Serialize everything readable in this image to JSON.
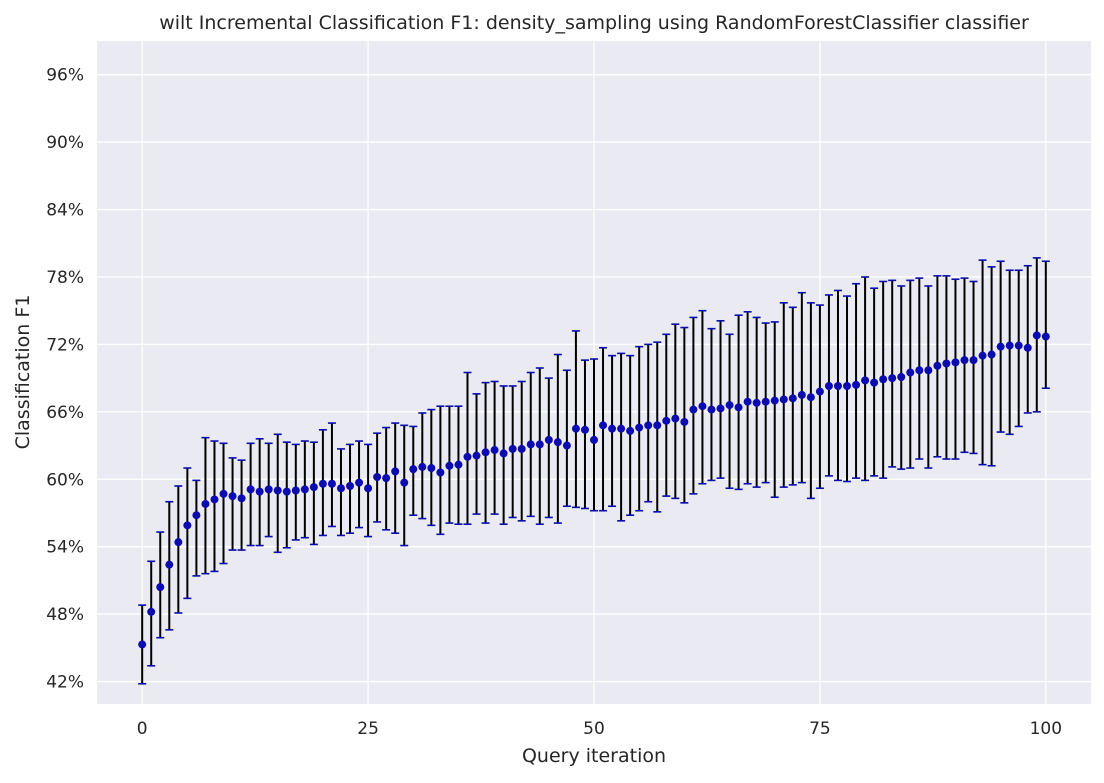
{
  "chart_data": {
    "type": "scatter",
    "title": "wilt Incremental Classification F1: density_sampling using RandomForestClassifier classifier",
    "xlabel": "Query iteration",
    "ylabel": "Classification F1",
    "xlim": [
      -5,
      105
    ],
    "ylim": [
      0.4,
      0.99
    ],
    "xticks": [
      0,
      25,
      50,
      75,
      100
    ],
    "xtick_labels": [
      "0",
      "25",
      "50",
      "75",
      "100"
    ],
    "yticks": [
      0.42,
      0.48,
      0.54,
      0.6,
      0.66,
      0.72,
      0.78,
      0.84,
      0.9,
      0.96
    ],
    "ytick_labels": [
      "42%",
      "48%",
      "54%",
      "60%",
      "66%",
      "72%",
      "78%",
      "84%",
      "90%",
      "96%"
    ],
    "grid": true,
    "colors": {
      "background": "#eaeaf2",
      "grid": "#ffffff",
      "marker": "#0b0bb0",
      "errorbar": "#000000",
      "cap": "#0b0bb0"
    },
    "x": [
      0,
      1,
      2,
      3,
      4,
      5,
      6,
      7,
      8,
      9,
      10,
      11,
      12,
      13,
      14,
      15,
      16,
      17,
      18,
      19,
      20,
      21,
      22,
      23,
      24,
      25,
      26,
      27,
      28,
      29,
      30,
      31,
      32,
      33,
      34,
      35,
      36,
      37,
      38,
      39,
      40,
      41,
      42,
      43,
      44,
      45,
      46,
      47,
      48,
      49,
      50,
      51,
      52,
      53,
      54,
      55,
      56,
      57,
      58,
      59,
      60,
      61,
      62,
      63,
      64,
      65,
      66,
      67,
      68,
      69,
      70,
      71,
      72,
      73,
      74,
      75,
      76,
      77,
      78,
      79,
      80,
      81,
      82,
      83,
      84,
      85,
      86,
      87,
      88,
      89,
      90,
      91,
      92,
      93,
      94,
      95,
      96,
      97,
      98,
      99,
      100
    ],
    "mean": [
      0.453,
      0.482,
      0.504,
      0.524,
      0.544,
      0.559,
      0.568,
      0.578,
      0.582,
      0.587,
      0.585,
      0.583,
      0.591,
      0.589,
      0.591,
      0.59,
      0.589,
      0.59,
      0.591,
      0.593,
      0.596,
      0.596,
      0.592,
      0.594,
      0.597,
      0.592,
      0.602,
      0.601,
      0.607,
      0.597,
      0.609,
      0.611,
      0.61,
      0.606,
      0.612,
      0.613,
      0.62,
      0.621,
      0.624,
      0.626,
      0.623,
      0.627,
      0.627,
      0.631,
      0.631,
      0.635,
      0.633,
      0.63,
      0.645,
      0.644,
      0.635,
      0.648,
      0.645,
      0.645,
      0.643,
      0.646,
      0.648,
      0.648,
      0.652,
      0.654,
      0.651,
      0.662,
      0.665,
      0.662,
      0.663,
      0.666,
      0.664,
      0.669,
      0.668,
      0.669,
      0.67,
      0.671,
      0.672,
      0.675,
      0.673,
      0.678,
      0.683,
      0.683,
      0.683,
      0.684,
      0.688,
      0.686,
      0.689,
      0.69,
      0.691,
      0.695,
      0.697,
      0.697,
      0.701,
      0.703,
      0.704,
      0.706,
      0.706,
      0.71,
      0.711,
      0.718,
      0.719,
      0.719,
      0.717,
      0.728,
      0.727
    ],
    "lower": [
      0.418,
      0.434,
      0.459,
      0.466,
      0.481,
      0.494,
      0.514,
      0.516,
      0.518,
      0.525,
      0.537,
      0.537,
      0.541,
      0.541,
      0.549,
      0.535,
      0.539,
      0.546,
      0.548,
      0.542,
      0.55,
      0.558,
      0.55,
      0.552,
      0.557,
      0.549,
      0.562,
      0.555,
      0.552,
      0.541,
      0.568,
      0.565,
      0.559,
      0.551,
      0.561,
      0.56,
      0.56,
      0.569,
      0.561,
      0.569,
      0.56,
      0.566,
      0.563,
      0.567,
      0.56,
      0.566,
      0.561,
      0.576,
      0.575,
      0.574,
      0.572,
      0.572,
      0.576,
      0.563,
      0.568,
      0.572,
      0.58,
      0.571,
      0.585,
      0.583,
      0.579,
      0.587,
      0.596,
      0.599,
      0.601,
      0.592,
      0.591,
      0.596,
      0.593,
      0.597,
      0.584,
      0.593,
      0.595,
      0.597,
      0.583,
      0.592,
      0.603,
      0.599,
      0.598,
      0.601,
      0.599,
      0.603,
      0.601,
      0.611,
      0.609,
      0.61,
      0.618,
      0.61,
      0.62,
      0.618,
      0.618,
      0.624,
      0.623,
      0.613,
      0.612,
      0.642,
      0.64,
      0.647,
      0.659,
      0.66,
      0.681
    ],
    "upper": [
      0.488,
      0.527,
      0.553,
      0.58,
      0.594,
      0.61,
      0.599,
      0.637,
      0.634,
      0.632,
      0.619,
      0.617,
      0.632,
      0.636,
      0.632,
      0.64,
      0.633,
      0.631,
      0.634,
      0.633,
      0.644,
      0.65,
      0.627,
      0.631,
      0.634,
      0.631,
      0.641,
      0.646,
      0.65,
      0.648,
      0.647,
      0.659,
      0.662,
      0.665,
      0.665,
      0.665,
      0.695,
      0.676,
      0.686,
      0.687,
      0.683,
      0.683,
      0.687,
      0.695,
      0.699,
      0.69,
      0.711,
      0.697,
      0.732,
      0.706,
      0.707,
      0.717,
      0.71,
      0.712,
      0.71,
      0.718,
      0.72,
      0.722,
      0.729,
      0.738,
      0.735,
      0.744,
      0.75,
      0.734,
      0.741,
      0.729,
      0.746,
      0.749,
      0.744,
      0.739,
      0.74,
      0.757,
      0.753,
      0.766,
      0.757,
      0.755,
      0.764,
      0.768,
      0.763,
      0.774,
      0.78,
      0.77,
      0.776,
      0.777,
      0.772,
      0.777,
      0.779,
      0.772,
      0.781,
      0.781,
      0.778,
      0.779,
      0.776,
      0.795,
      0.789,
      0.794,
      0.786,
      0.786,
      0.79,
      0.797,
      0.794
    ]
  }
}
